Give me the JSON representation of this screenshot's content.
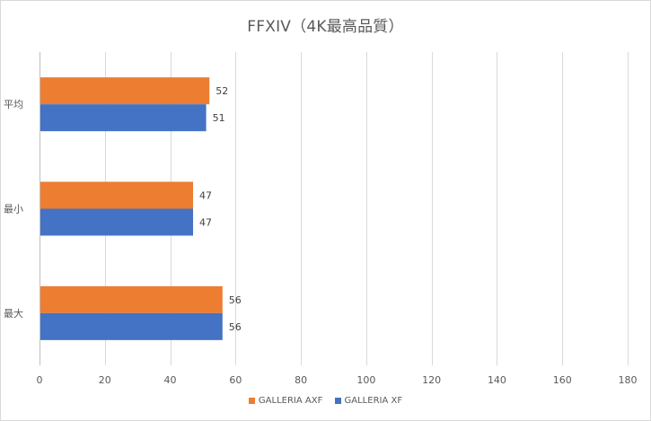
{
  "chart_data": {
    "type": "bar",
    "orientation": "horizontal",
    "title": "FFXIV（4K最高品質）",
    "categories": [
      "平均",
      "最小",
      "最大"
    ],
    "series": [
      {
        "name": "GALLERIA AXF",
        "color": "#ED7D31",
        "values": [
          52,
          47,
          56
        ]
      },
      {
        "name": "GALLERIA XF",
        "color": "#4472C4",
        "values": [
          51,
          47,
          56
        ]
      }
    ],
    "xlim": [
      0,
      180
    ],
    "xticks": [
      0,
      20,
      40,
      60,
      80,
      100,
      120,
      140,
      160,
      180
    ],
    "xlabel": "",
    "ylabel": "",
    "grid": true,
    "data_labels": true,
    "legend_position": "bottom"
  }
}
